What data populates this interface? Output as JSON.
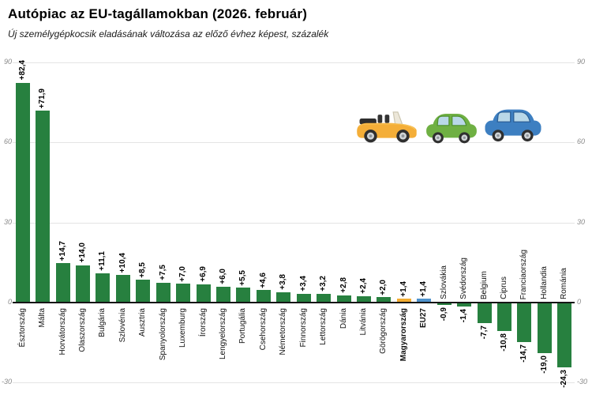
{
  "header": {
    "title": "Autópiac az EU-tagállamokban (2026. február)",
    "subtitle": "Új személygépkocsik eladásának változása az előző évhez képest, százalék"
  },
  "chart_data": {
    "type": "bar",
    "title": "Autópiac az EU-tagállamokban (2026. február)",
    "subtitle": "Új személygépkocsik eladásának változása az előző évhez képest, százalék",
    "unit": "percent change year-over-year",
    "categories": [
      "Észtország",
      "Málta",
      "Horvátország",
      "Olaszország",
      "Bulgária",
      "Szlovénia",
      "Ausztria",
      "Spanyolország",
      "Luxemburg",
      "Írország",
      "Lengyelország",
      "Portugália",
      "Csehország",
      "Németország",
      "Finnország",
      "Lettország",
      "Dánia",
      "Litvánia",
      "Görögország",
      "Magyarország",
      "EU27",
      "Szlovákia",
      "Svédország",
      "Belgium",
      "Ciprus",
      "Franciaország",
      "Hollandia",
      "Románia"
    ],
    "values": [
      82.4,
      71.9,
      14.7,
      14.0,
      11.1,
      10.4,
      8.5,
      7.5,
      7.0,
      6.9,
      6.0,
      5.5,
      4.6,
      3.8,
      3.4,
      3.2,
      2.8,
      2.4,
      2.0,
      1.4,
      1.4,
      -0.9,
      -1.4,
      -7.7,
      -10.8,
      -14.7,
      -19.0,
      -24.3
    ],
    "value_labels": [
      "+82,4",
      "+71,9",
      "+14,7",
      "+14,0",
      "+11,1",
      "+10,4",
      "+8,5",
      "+7,5",
      "+7,0",
      "+6,9",
      "+6,0",
      "+5,5",
      "+4,6",
      "+3,8",
      "+3,4",
      "+3,2",
      "+2,8",
      "+2,4",
      "+2,0",
      "+1,4",
      "+1,4",
      "-0,9",
      "-1,4",
      "-7,7",
      "-10,8",
      "-14,7",
      "-19,0",
      "-24,3"
    ],
    "ylim": [
      -30,
      90
    ],
    "yticks": [
      90,
      60,
      30,
      0,
      -30
    ],
    "grid": true,
    "legend_position": "none",
    "colors": {
      "default_bar": "#27803F",
      "hungary_bar": "#F2AC30",
      "eu27_bar": "#4E92CC",
      "gridline": "#E4E4E4",
      "axis_line": "#161616",
      "tick_label": "#8A8A8A"
    },
    "emphasis": [
      {
        "category": "Magyarország",
        "index": 19,
        "color_key": "hungary_bar",
        "bold_label": true
      },
      {
        "category": "EU27",
        "index": 20,
        "color_key": "eu27_bar",
        "bold_label": true
      }
    ]
  },
  "icons": [
    {
      "name": "yellow-convertible-car-icon",
      "color": "#F4AE38"
    },
    {
      "name": "green-car-icon",
      "color": "#6FB043"
    },
    {
      "name": "blue-car-icon",
      "color": "#3D7FC1"
    }
  ]
}
